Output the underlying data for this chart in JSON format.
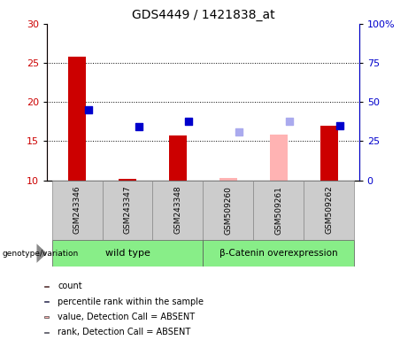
{
  "title": "GDS4449 / 1421838_at",
  "samples": [
    "GSM243346",
    "GSM243347",
    "GSM243348",
    "GSM509260",
    "GSM509261",
    "GSM509262"
  ],
  "bar_values": [
    25.8,
    10.2,
    15.7,
    10.3,
    15.8,
    17.0
  ],
  "bar_absent": [
    false,
    false,
    false,
    true,
    true,
    false
  ],
  "bar_color_present": "#cc0000",
  "bar_color_absent": "#ffb3b3",
  "square_values": [
    19.0,
    16.8,
    17.5,
    16.2,
    17.5,
    17.0
  ],
  "square_absent": [
    false,
    false,
    false,
    true,
    true,
    false
  ],
  "square_color_present": "#0000cc",
  "square_color_absent": "#aaaaee",
  "ylim_left": [
    10,
    30
  ],
  "ylim_right": [
    0,
    100
  ],
  "yticks_left": [
    10,
    15,
    20,
    25,
    30
  ],
  "yticks_right": [
    0,
    25,
    50,
    75,
    100
  ],
  "ytick_labels_right": [
    "0",
    "25",
    "50",
    "75",
    "100%"
  ],
  "genotype_groups": [
    {
      "label": "wild type",
      "indices": [
        0,
        1,
        2
      ],
      "color": "#88ee88"
    },
    {
      "label": "β-Catenin overexpression",
      "indices": [
        3,
        4,
        5
      ],
      "color": "#88ee88"
    }
  ],
  "legend_items": [
    {
      "color": "#cc0000",
      "label": "count"
    },
    {
      "color": "#0000cc",
      "label": "percentile rank within the sample"
    },
    {
      "color": "#ffb3b3",
      "label": "value, Detection Call = ABSENT"
    },
    {
      "color": "#aaaaee",
      "label": "rank, Detection Call = ABSENT"
    }
  ],
  "bar_width": 0.35,
  "square_size": 28,
  "background_color": "#ffffff",
  "plot_bg_color": "#ffffff",
  "label_bg_color": "#cccccc",
  "grid_dotted_at": [
    15,
    20,
    25
  ]
}
